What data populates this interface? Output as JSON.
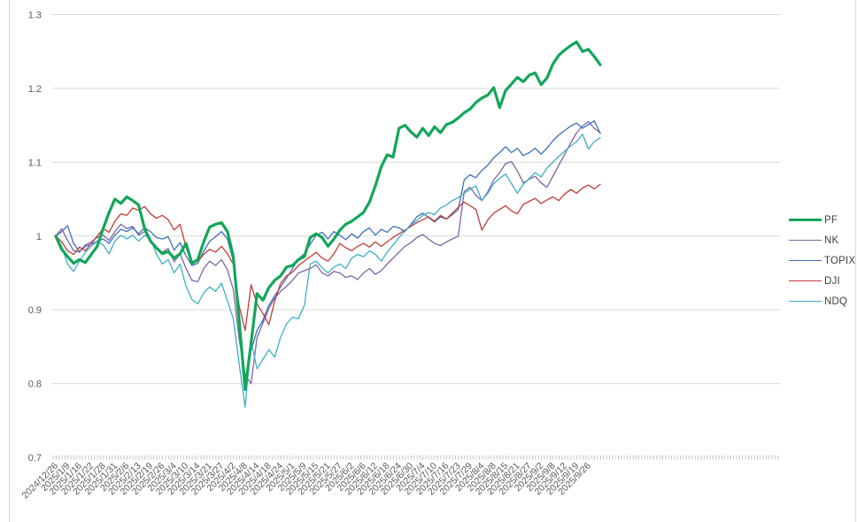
{
  "chart_data": {
    "type": "line",
    "title": "",
    "grid": "horizontal",
    "legend_position": "right",
    "x_labels": [
      "2024/12/26",
      "2025/1/9",
      "2025/1/16",
      "2025/1/22",
      "2025/1/28",
      "2025/1/31",
      "2025/2/6",
      "2025/2/13",
      "2025/2/19",
      "2025/2/26",
      "2025/3/4",
      "2025/3/10",
      "2025/3/14",
      "2025/3/21",
      "2025/3/27",
      "2025/4/2",
      "2025/4/8",
      "2025/4/14",
      "2025/4/18",
      "2025/4/24",
      "2025/5/1",
      "2025/5/9",
      "2025/5/15",
      "2025/5/21",
      "2025/5/27",
      "2025/6/2",
      "2025/6/6",
      "2025/6/12",
      "2025/6/18",
      "2025/6/24",
      "2025/6/30",
      "2025/7/4",
      "2025/7/10",
      "2025/7/16",
      "2025/7/23",
      "2025/7/29",
      "2025/8/4",
      "2025/8/8",
      "2025/8/15",
      "2025/8/21",
      "2025/8/27",
      "2025/9/2",
      "2025/9/8",
      "2025/9/12",
      "2025/9/19",
      "2025/9/26"
    ],
    "points_per_label": 2,
    "y_axis": {
      "min": 0.7,
      "max": 1.3,
      "step": 0.1,
      "tick_labels": [
        "1.3",
        "1.2",
        "1.1",
        "1",
        "0.9",
        "0.8",
        "0.7"
      ]
    },
    "axis_text_color": "#595959",
    "gridline_color": "#d9d9d9",
    "tick_color": "#bfbfbf",
    "series": [
      {
        "name": "NK",
        "color": "#7c66a4",
        "line_width": 1.3,
        "values": [
          1.0,
          1.01,
          0.994,
          0.98,
          0.978,
          0.988,
          0.992,
          0.998,
          1.001,
          0.994,
          1.006,
          1.016,
          1.01,
          1.013,
          1.001,
          1.006,
          0.992,
          0.984,
          0.978,
          0.983,
          0.965,
          0.976,
          0.956,
          0.94,
          0.938,
          0.956,
          0.966,
          0.96,
          0.968,
          0.954,
          0.928,
          0.86,
          0.812,
          0.8,
          0.862,
          0.882,
          0.902,
          0.916,
          0.925,
          0.932,
          0.94,
          0.95,
          0.953,
          0.956,
          0.961,
          0.95,
          0.946,
          0.952,
          0.95,
          0.944,
          0.946,
          0.941,
          0.95,
          0.956,
          0.948,
          0.953,
          0.962,
          0.97,
          0.978,
          0.986,
          0.991,
          0.998,
          1.002,
          0.996,
          0.99,
          0.987,
          0.992,
          0.996,
          1.0,
          1.06,
          1.066,
          1.055,
          1.048,
          1.06,
          1.076,
          1.086,
          1.098,
          1.101,
          1.088,
          1.072,
          1.077,
          1.081,
          1.072,
          1.066,
          1.081,
          1.096,
          1.111,
          1.126,
          1.14,
          1.149,
          1.155,
          1.146,
          1.14
        ]
      },
      {
        "name": "TOPIX",
        "color": "#3e6fb8",
        "line_width": 1.3,
        "values": [
          1.0,
          1.006,
          1.014,
          0.99,
          0.979,
          0.986,
          0.989,
          0.993,
          0.996,
          0.99,
          1.001,
          1.009,
          1.006,
          1.011,
          1.003,
          1.011,
          1.006,
          0.998,
          0.996,
          0.999,
          0.981,
          0.991,
          0.973,
          0.96,
          0.963,
          0.979,
          0.993,
          0.999,
          1.006,
          0.996,
          0.966,
          0.888,
          0.8,
          0.845,
          0.872,
          0.886,
          0.906,
          0.919,
          0.931,
          0.943,
          0.956,
          0.969,
          0.976,
          0.989,
          1.001,
          1.005,
          0.996,
          1.006,
          1.001,
          0.995,
          1.003,
          0.997,
          1.006,
          1.011,
          1.001,
          1.009,
          1.005,
          1.013,
          1.011,
          1.006,
          1.016,
          1.026,
          1.031,
          1.025,
          1.019,
          1.026,
          1.023,
          1.029,
          1.036,
          1.076,
          1.083,
          1.079,
          1.089,
          1.096,
          1.106,
          1.113,
          1.121,
          1.113,
          1.119,
          1.109,
          1.113,
          1.119,
          1.111,
          1.119,
          1.129,
          1.137,
          1.143,
          1.149,
          1.153,
          1.146,
          1.151,
          1.156,
          1.139
        ]
      },
      {
        "name": "DJI",
        "color": "#c23b38",
        "line_width": 1.3,
        "values": [
          1.0,
          0.992,
          0.98,
          0.975,
          0.985,
          0.98,
          0.99,
          1.0,
          1.01,
          1.005,
          1.02,
          1.03,
          1.028,
          1.038,
          1.035,
          1.04,
          1.03,
          1.024,
          1.028,
          1.022,
          1.008,
          1.016,
          0.985,
          0.962,
          0.966,
          0.975,
          0.982,
          0.978,
          0.986,
          0.976,
          0.962,
          0.905,
          0.872,
          0.934,
          0.908,
          0.895,
          0.88,
          0.912,
          0.936,
          0.946,
          0.951,
          0.96,
          0.966,
          0.972,
          0.978,
          0.97,
          0.966,
          0.976,
          0.99,
          0.984,
          0.98,
          0.986,
          0.99,
          0.985,
          0.992,
          0.986,
          0.992,
          0.998,
          1.003,
          1.008,
          1.013,
          1.018,
          1.022,
          1.026,
          1.02,
          1.028,
          1.023,
          1.031,
          1.039,
          1.046,
          1.041,
          1.036,
          1.008,
          1.022,
          1.031,
          1.036,
          1.041,
          1.034,
          1.03,
          1.043,
          1.047,
          1.051,
          1.044,
          1.049,
          1.053,
          1.048,
          1.057,
          1.063,
          1.058,
          1.065,
          1.069,
          1.064,
          1.07
        ]
      },
      {
        "name": "NDQ",
        "color": "#3faec6",
        "line_width": 1.3,
        "values": [
          1.0,
          0.986,
          0.962,
          0.952,
          0.966,
          0.978,
          0.986,
          0.993,
          0.988,
          0.976,
          0.993,
          1.001,
          0.996,
          1.001,
          0.993,
          1.001,
          0.996,
          0.976,
          0.962,
          0.968,
          0.95,
          0.962,
          0.932,
          0.914,
          0.908,
          0.923,
          0.931,
          0.925,
          0.936,
          0.912,
          0.888,
          0.826,
          0.768,
          0.858,
          0.82,
          0.833,
          0.846,
          0.836,
          0.863,
          0.881,
          0.89,
          0.888,
          0.906,
          0.962,
          0.966,
          0.957,
          0.95,
          0.958,
          0.962,
          0.956,
          0.97,
          0.975,
          0.972,
          0.98,
          0.975,
          0.966,
          0.978,
          0.988,
          0.998,
          1.007,
          1.015,
          1.021,
          1.028,
          1.032,
          1.029,
          1.038,
          1.042,
          1.048,
          1.052,
          1.058,
          1.063,
          1.068,
          1.048,
          1.058,
          1.071,
          1.078,
          1.084,
          1.071,
          1.058,
          1.07,
          1.078,
          1.086,
          1.08,
          1.092,
          1.1,
          1.108,
          1.115,
          1.122,
          1.128,
          1.138,
          1.118,
          1.128,
          1.133
        ]
      },
      {
        "name": "PF",
        "color": "#12a65a",
        "line_width": 3.2,
        "values": [
          1.0,
          0.982,
          0.972,
          0.963,
          0.968,
          0.964,
          0.975,
          0.986,
          1.01,
          1.032,
          1.05,
          1.044,
          1.053,
          1.048,
          1.042,
          1.01,
          0.993,
          0.984,
          0.976,
          0.979,
          0.97,
          0.976,
          0.99,
          0.963,
          0.968,
          0.992,
          1.012,
          1.016,
          1.018,
          1.006,
          0.972,
          0.885,
          0.792,
          0.855,
          0.922,
          0.913,
          0.93,
          0.94,
          0.946,
          0.958,
          0.96,
          0.968,
          0.972,
          0.998,
          1.003,
          0.998,
          0.986,
          0.996,
          1.008,
          1.016,
          1.02,
          1.026,
          1.032,
          1.046,
          1.068,
          1.094,
          1.11,
          1.107,
          1.146,
          1.15,
          1.141,
          1.134,
          1.146,
          1.136,
          1.148,
          1.14,
          1.151,
          1.154,
          1.16,
          1.167,
          1.172,
          1.181,
          1.187,
          1.191,
          1.201,
          1.174,
          1.197,
          1.206,
          1.215,
          1.209,
          1.218,
          1.221,
          1.205,
          1.214,
          1.233,
          1.245,
          1.252,
          1.258,
          1.263,
          1.25,
          1.253,
          1.243,
          1.232
        ]
      }
    ],
    "legend_order": [
      "PF",
      "NK",
      "TOPIX",
      "DJI",
      "NDQ"
    ]
  },
  "legend": {
    "items": [
      {
        "label": "PF"
      },
      {
        "label": "NK"
      },
      {
        "label": "TOPIX"
      },
      {
        "label": "DJI"
      },
      {
        "label": "NDQ"
      }
    ]
  }
}
